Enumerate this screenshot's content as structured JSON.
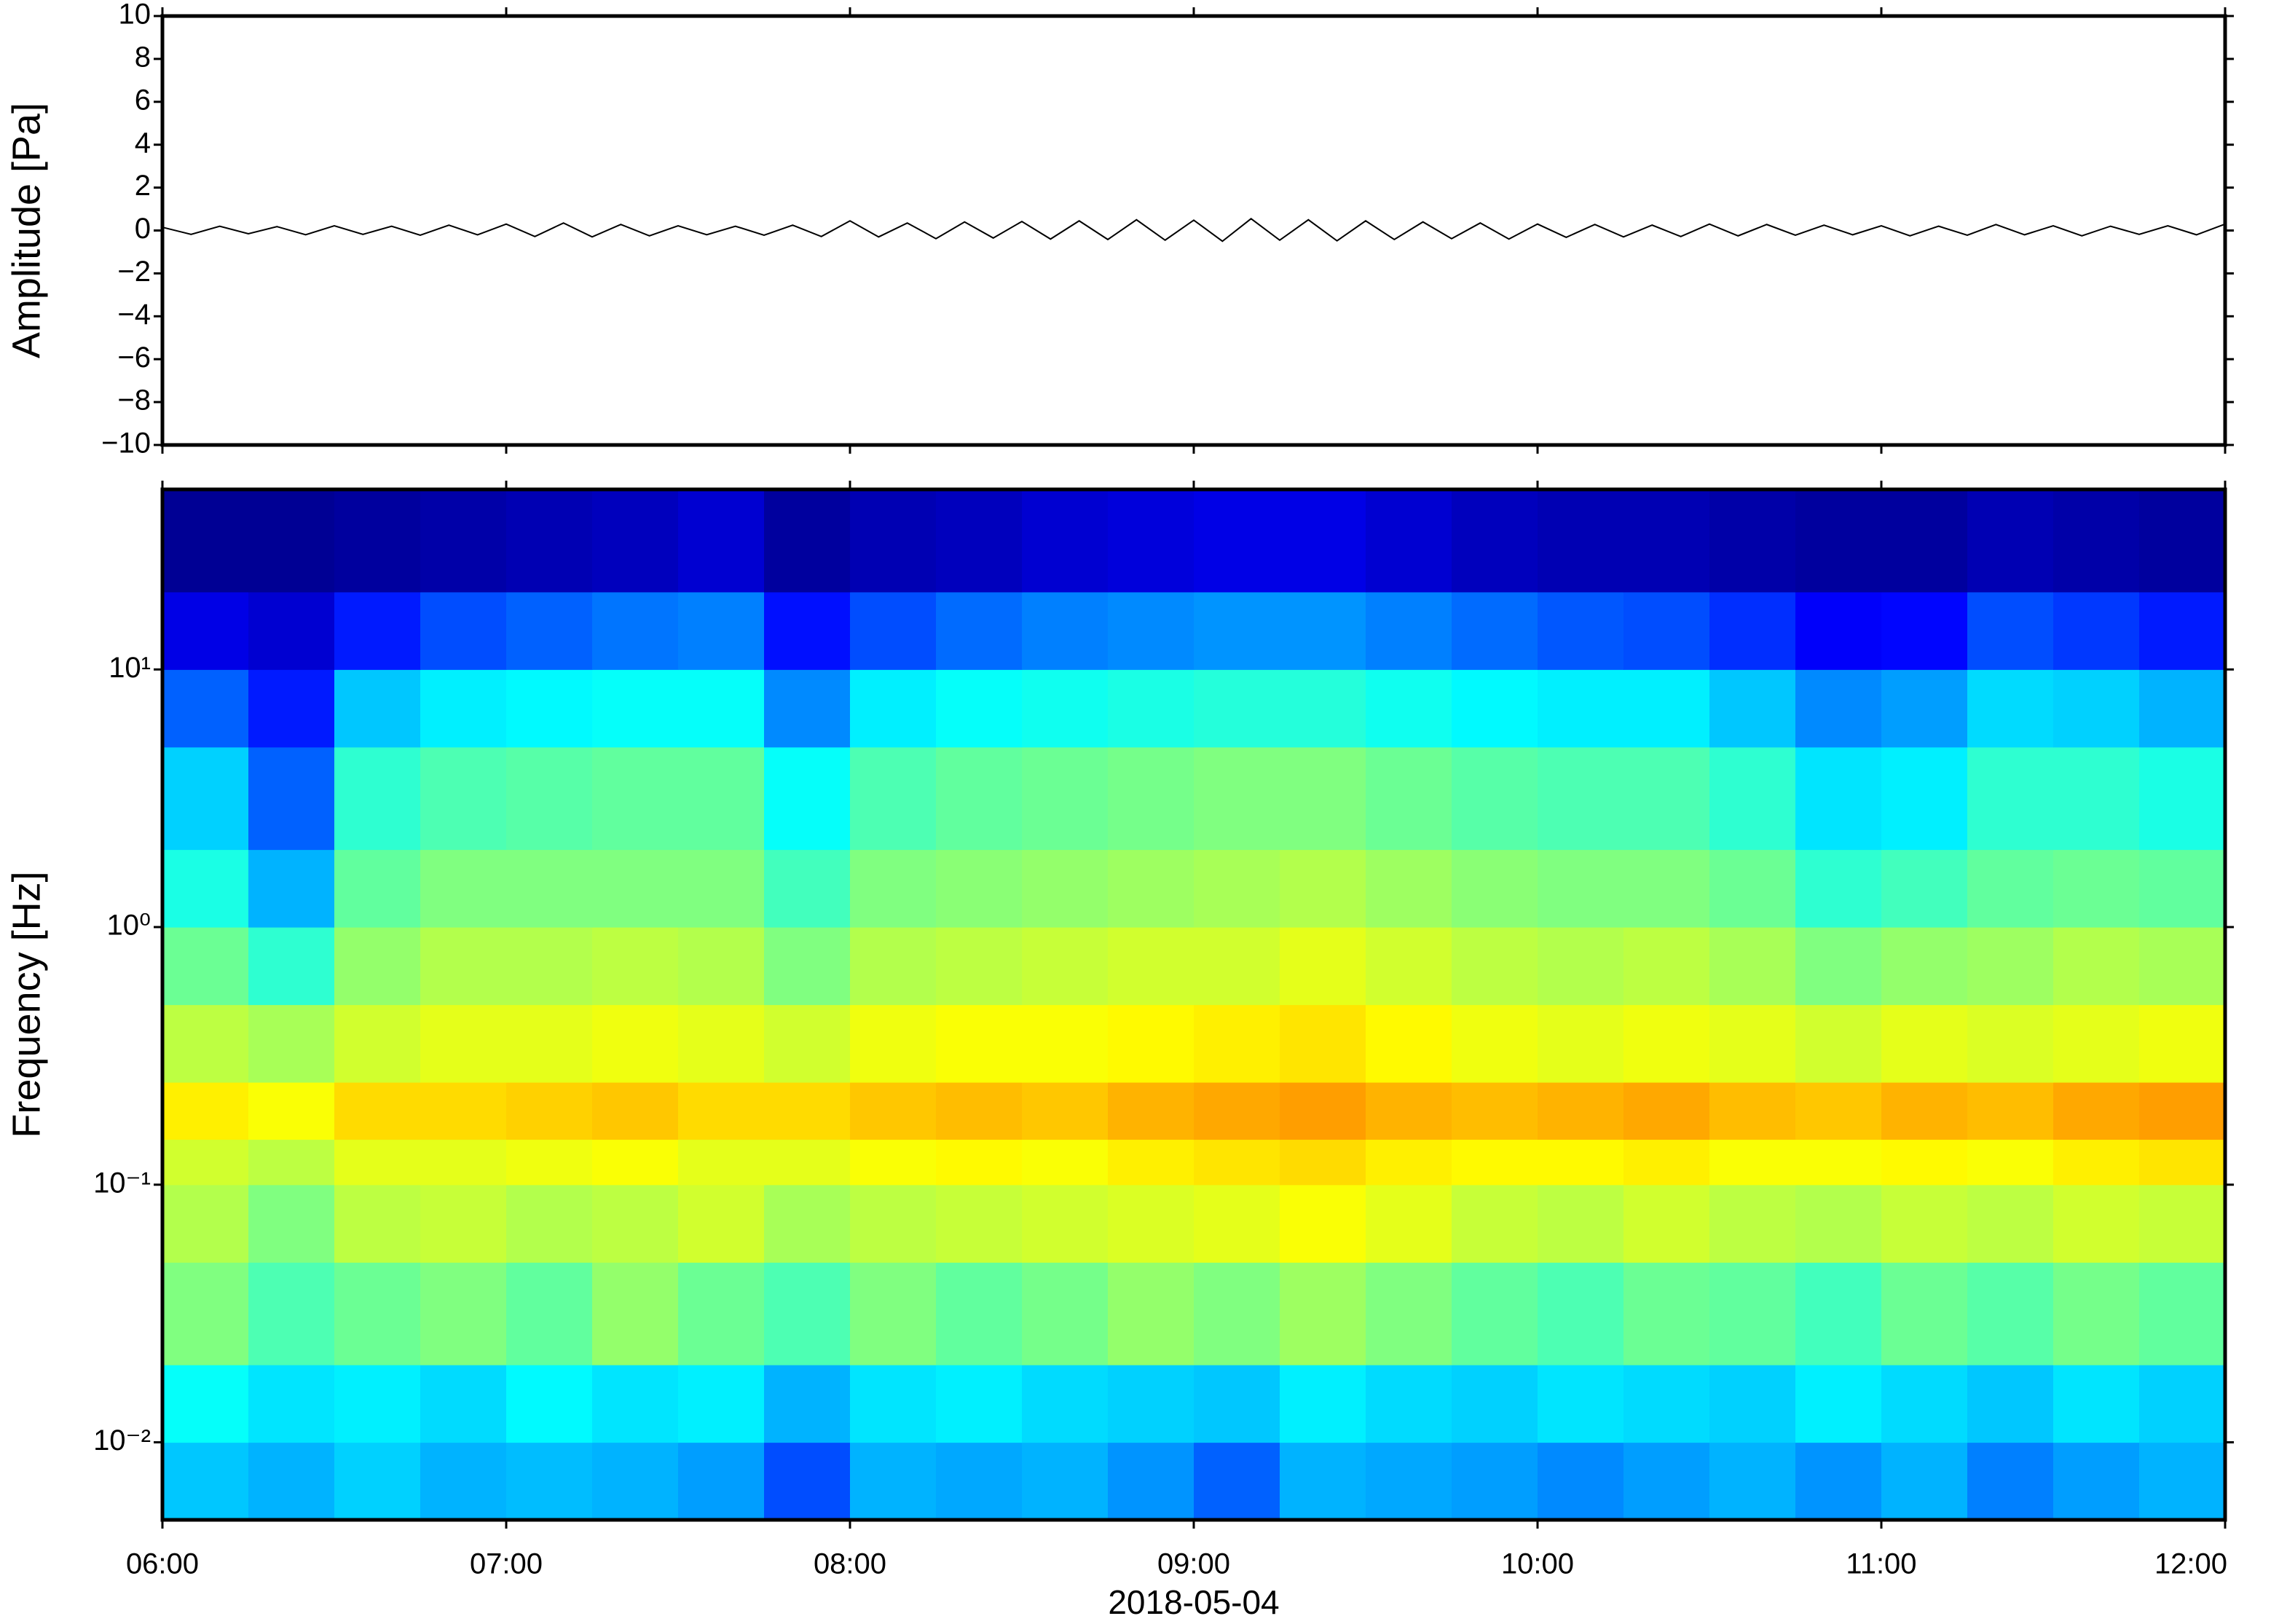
{
  "chart_data": [
    {
      "type": "line",
      "ylabel": "Amplitude [Pa]",
      "color": "#000000",
      "ylim": [
        -10,
        10
      ],
      "yticks": [
        {
          "value": -10,
          "label": "−10"
        },
        {
          "value": -8,
          "label": "−8"
        },
        {
          "value": -6,
          "label": "−6"
        },
        {
          "value": -4,
          "label": "−4"
        },
        {
          "value": -2,
          "label": "−2"
        },
        0,
        2,
        4,
        6,
        8,
        10
      ],
      "values": [
        0.15,
        -0.18,
        0.2,
        -0.15,
        0.18,
        -0.2,
        0.22,
        -0.18,
        0.2,
        -0.22,
        0.25,
        -0.2,
        0.3,
        -0.28,
        0.35,
        -0.3,
        0.28,
        -0.25,
        0.22,
        -0.2,
        0.2,
        -0.22,
        0.25,
        -0.28,
        0.45,
        -0.3,
        0.35,
        -0.38,
        0.4,
        -0.35,
        0.42,
        -0.4,
        0.45,
        -0.42,
        0.5,
        -0.45,
        0.48,
        -0.5,
        0.55,
        -0.45,
        0.5,
        -0.48,
        0.45,
        -0.42,
        0.4,
        -0.38,
        0.35,
        -0.4,
        0.3,
        -0.32,
        0.28,
        -0.3,
        0.25,
        -0.28,
        0.3,
        -0.25,
        0.28,
        -0.22,
        0.25,
        -0.2,
        0.22,
        -0.25,
        0.2,
        -0.22,
        0.28,
        -0.2,
        0.22,
        -0.25,
        0.2,
        -0.18,
        0.22,
        -0.2,
        0.3
      ]
    },
    {
      "type": "heatmap",
      "ylabel": "Frequency [Hz]",
      "xlabel": "2018-05-04",
      "ylog": true,
      "colormap": "jet",
      "xticks": [
        "06:00",
        "07:00",
        "08:00",
        "09:00",
        "10:00",
        "11:00",
        "12:00"
      ],
      "ylim": [
        0.005,
        50
      ],
      "yticks": [
        {
          "value": 0.01,
          "label": "10⁻²"
        },
        {
          "value": 0.1,
          "label": "10⁻¹"
        },
        {
          "value": 1,
          "label": "10⁰"
        },
        {
          "value": 10,
          "label": "10¹"
        }
      ],
      "y_edges": [
        0.005,
        0.01,
        0.02,
        0.05,
        0.1,
        0.15,
        0.25,
        0.5,
        1,
        2,
        5,
        10,
        20,
        50
      ],
      "z": [
        [
          0.32,
          0.3,
          0.33,
          0.3,
          0.31,
          0.3,
          0.28,
          0.2,
          0.3,
          0.29,
          0.3,
          0.27,
          0.22,
          0.3,
          0.29,
          0.28,
          0.26,
          0.28,
          0.3,
          0.27,
          0.3,
          0.25,
          0.28,
          0.3
        ],
        [
          0.38,
          0.35,
          0.36,
          0.34,
          0.37,
          0.35,
          0.36,
          0.3,
          0.35,
          0.36,
          0.34,
          0.33,
          0.32,
          0.36,
          0.34,
          0.33,
          0.35,
          0.34,
          0.33,
          0.36,
          0.34,
          0.32,
          0.35,
          0.33
        ],
        [
          0.5,
          0.45,
          0.48,
          0.5,
          0.47,
          0.52,
          0.48,
          0.45,
          0.5,
          0.47,
          0.49,
          0.52,
          0.5,
          0.53,
          0.5,
          0.47,
          0.45,
          0.48,
          0.47,
          0.44,
          0.48,
          0.46,
          0.49,
          0.47
        ],
        [
          0.55,
          0.5,
          0.56,
          0.57,
          0.55,
          0.56,
          0.58,
          0.54,
          0.56,
          0.57,
          0.58,
          0.59,
          0.6,
          0.62,
          0.6,
          0.57,
          0.56,
          0.58,
          0.56,
          0.55,
          0.57,
          0.56,
          0.58,
          0.57
        ],
        [
          0.58,
          0.56,
          0.6,
          0.6,
          0.61,
          0.62,
          0.6,
          0.6,
          0.62,
          0.63,
          0.62,
          0.64,
          0.65,
          0.66,
          0.64,
          0.63,
          0.63,
          0.64,
          0.62,
          0.62,
          0.63,
          0.62,
          0.64,
          0.65
        ],
        [
          0.64,
          0.62,
          0.66,
          0.66,
          0.67,
          0.68,
          0.66,
          0.66,
          0.68,
          0.69,
          0.68,
          0.7,
          0.71,
          0.72,
          0.7,
          0.69,
          0.7,
          0.71,
          0.69,
          0.68,
          0.7,
          0.69,
          0.71,
          0.72
        ],
        [
          0.56,
          0.54,
          0.58,
          0.6,
          0.6,
          0.61,
          0.6,
          0.58,
          0.61,
          0.62,
          0.62,
          0.63,
          0.64,
          0.65,
          0.63,
          0.61,
          0.6,
          0.61,
          0.6,
          0.58,
          0.6,
          0.59,
          0.6,
          0.61
        ],
        [
          0.48,
          0.42,
          0.52,
          0.55,
          0.55,
          0.56,
          0.55,
          0.5,
          0.55,
          0.56,
          0.57,
          0.58,
          0.58,
          0.6,
          0.58,
          0.56,
          0.55,
          0.56,
          0.54,
          0.5,
          0.52,
          0.53,
          0.55,
          0.54
        ],
        [
          0.4,
          0.3,
          0.47,
          0.5,
          0.5,
          0.5,
          0.5,
          0.44,
          0.5,
          0.51,
          0.52,
          0.53,
          0.54,
          0.55,
          0.53,
          0.51,
          0.5,
          0.5,
          0.48,
          0.42,
          0.44,
          0.47,
          0.48,
          0.47
        ],
        [
          0.33,
          0.22,
          0.42,
          0.45,
          0.46,
          0.47,
          0.47,
          0.38,
          0.45,
          0.47,
          0.48,
          0.49,
          0.5,
          0.5,
          0.48,
          0.46,
          0.45,
          0.45,
          0.42,
          0.35,
          0.36,
          0.42,
          0.42,
          0.4
        ],
        [
          0.22,
          0.15,
          0.32,
          0.36,
          0.37,
          0.38,
          0.38,
          0.26,
          0.36,
          0.38,
          0.39,
          0.4,
          0.41,
          0.41,
          0.39,
          0.37,
          0.36,
          0.36,
          0.32,
          0.26,
          0.28,
          0.34,
          0.33,
          0.3
        ],
        [
          0.1,
          0.08,
          0.15,
          0.2,
          0.22,
          0.24,
          0.25,
          0.14,
          0.2,
          0.23,
          0.25,
          0.26,
          0.27,
          0.27,
          0.25,
          0.23,
          0.21,
          0.2,
          0.17,
          0.12,
          0.13,
          0.2,
          0.18,
          0.15
        ],
        [
          0.02,
          0.02,
          0.03,
          0.04,
          0.05,
          0.06,
          0.08,
          0.03,
          0.05,
          0.06,
          0.08,
          0.09,
          0.1,
          0.1,
          0.08,
          0.06,
          0.05,
          0.05,
          0.04,
          0.03,
          0.03,
          0.05,
          0.04,
          0.03
        ]
      ]
    }
  ]
}
